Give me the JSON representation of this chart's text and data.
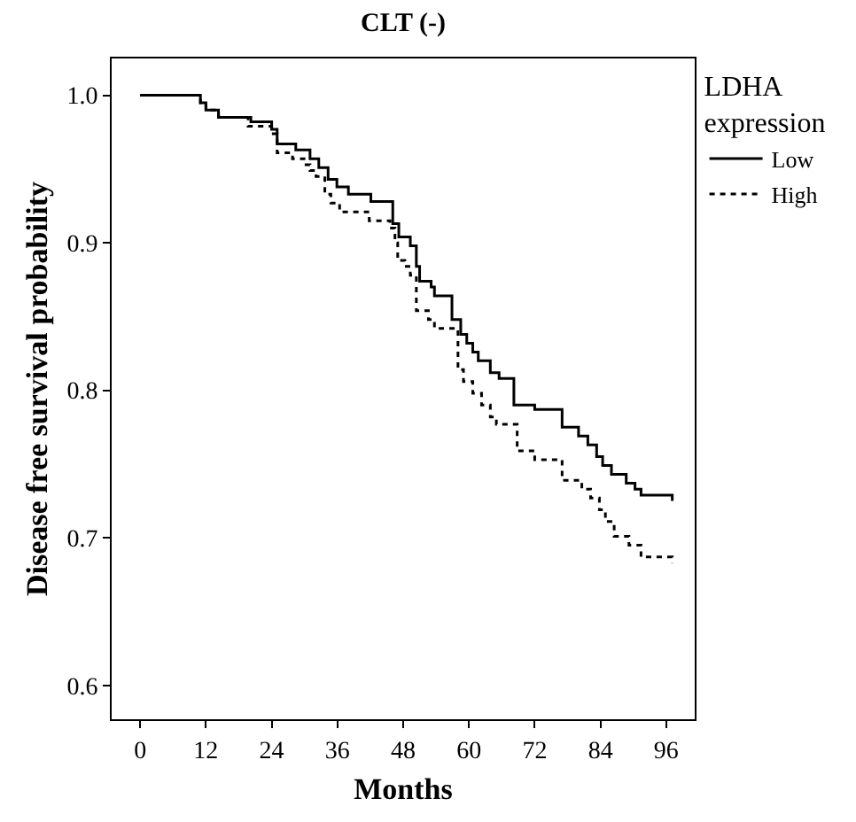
{
  "chart_data": {
    "type": "step",
    "title": "CLT (-)",
    "xlabel": "Months",
    "ylabel": "Disease free survival probability",
    "legend_title": "LDHA\nexpression",
    "legend": "top right",
    "series": [
      {
        "name": "Low",
        "color": "#000000",
        "line_style": "solid",
        "x": [
          0,
          11,
          12,
          14.3,
          20.2,
          24,
          25,
          28.4,
          31,
          32.6,
          34.3,
          35.9,
          38,
          42.1,
          46.1,
          47.2,
          49.3,
          50.4,
          51,
          53.1,
          53.7,
          56.9,
          58.5,
          59.6,
          60.7,
          61.7,
          63.9,
          65.5,
          68.2,
          72,
          77,
          80,
          81.7,
          83.3,
          84.4,
          86,
          88.7,
          90.3,
          91.4,
          97.1
        ],
        "values": [
          1.0,
          0.995,
          0.99,
          0.985,
          0.982,
          0.977,
          0.967,
          0.963,
          0.957,
          0.951,
          0.943,
          0.938,
          0.933,
          0.928,
          0.913,
          0.904,
          0.898,
          0.884,
          0.874,
          0.87,
          0.864,
          0.848,
          0.838,
          0.832,
          0.826,
          0.82,
          0.812,
          0.808,
          0.79,
          0.787,
          0.775,
          0.769,
          0.763,
          0.755,
          0.749,
          0.743,
          0.737,
          0.733,
          0.729,
          0.725
        ]
      },
      {
        "name": "High",
        "color": "#000000",
        "line_style": "dotted",
        "x": [
          0,
          11,
          12,
          14.3,
          19.7,
          24,
          25,
          27.8,
          29.9,
          31,
          32.1,
          33.7,
          34.8,
          36.4,
          41.8,
          45.6,
          46.5,
          47,
          48.3,
          49.3,
          50.4,
          52.6,
          53.7,
          58,
          59,
          60.7,
          62.3,
          63.9,
          65,
          68.8,
          72,
          77,
          80.6,
          82.2,
          83.8,
          84.9,
          86.5,
          89.2,
          91.4,
          97.1
        ],
        "values": [
          1.0,
          0.995,
          0.99,
          0.985,
          0.979,
          0.974,
          0.961,
          0.957,
          0.953,
          0.949,
          0.945,
          0.933,
          0.927,
          0.921,
          0.915,
          0.91,
          0.9,
          0.888,
          0.884,
          0.878,
          0.854,
          0.848,
          0.842,
          0.814,
          0.806,
          0.798,
          0.79,
          0.782,
          0.777,
          0.759,
          0.753,
          0.739,
          0.733,
          0.727,
          0.719,
          0.711,
          0.701,
          0.695,
          0.687,
          0.683
        ]
      }
    ],
    "xlim": [
      -5.2,
      101.2
    ],
    "xticks": [
      0,
      12,
      24,
      36,
      48,
      60,
      72,
      84,
      96
    ],
    "ylim": [
      0.577,
      1.025
    ],
    "yticks": [
      {
        "value": 0.6,
        "label": "0.6"
      },
      {
        "value": 0.7,
        "label": "0.7"
      },
      {
        "value": 0.8,
        "label": "0.8"
      },
      {
        "value": 0.9,
        "label": "0.9"
      },
      {
        "value": 1.0,
        "label": "1.0"
      }
    ]
  }
}
